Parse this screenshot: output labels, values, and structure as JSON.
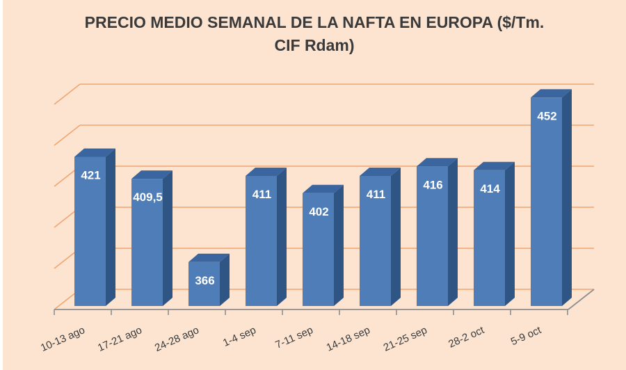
{
  "title": {
    "line1": "PRECIO MEDIO SEMANAL DE LA NAFTA EN EUROPA ($/Tm.",
    "line2": "CIF Rdam)",
    "full": "PRECIO MEDIO SEMANAL DE LA NAFTA EN EUROPA ($/Tm. CIF Rdam)"
  },
  "chart_data": {
    "type": "bar",
    "style": "3d-column",
    "title": "PRECIO MEDIO SEMANAL DE LA NAFTA EN EUROPA ($/Tm. CIF Rdam)",
    "categories": [
      "10-13 ago",
      "17-21 ago",
      "24-28 ago",
      "1-4 sep",
      "7-11 sep",
      "14-18 sep",
      "21-25 sep",
      "28-2 oct",
      "5-9 oct"
    ],
    "values": [
      421,
      409.5,
      366,
      411,
      402,
      411,
      416,
      414,
      452
    ],
    "value_labels": [
      "421",
      "409,5",
      "366",
      "411",
      "402",
      "411",
      "416",
      "414",
      "452"
    ],
    "xlabel": "",
    "ylabel": "",
    "ylim_estimated": [
      340,
      460
    ],
    "gridline_values_estimated": [
      340,
      360,
      380,
      400,
      420,
      440
    ],
    "grid": true,
    "legend": "none",
    "colors": {
      "background": "#FCE4D1",
      "bar_front": "#4F7DB8",
      "bar_top": "#3A659E",
      "bar_side": "#2F5584",
      "gridline": "#F0A571",
      "axis_line": "#8E8E8E",
      "title_text": "#3A3A3A",
      "category_text": "#3B3B3B",
      "value_label_text": "#FFFFFF"
    }
  }
}
